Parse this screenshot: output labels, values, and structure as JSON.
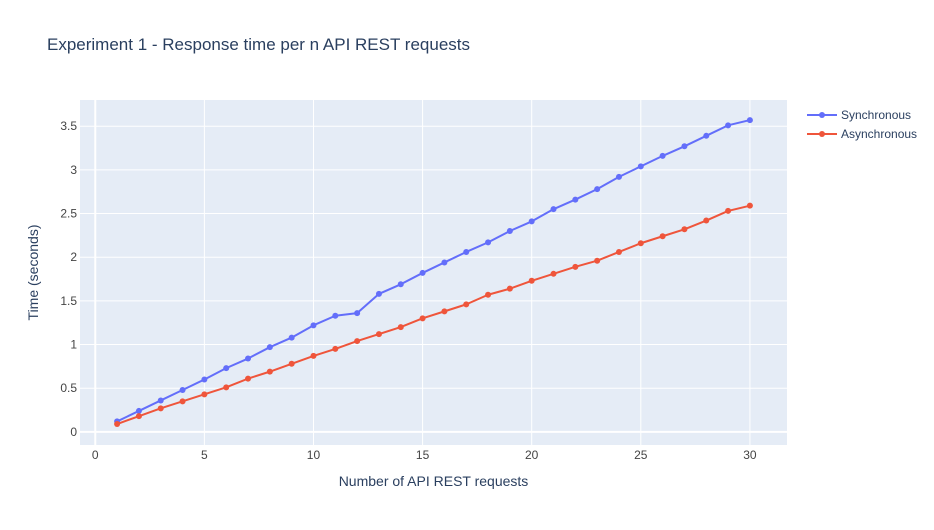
{
  "chart_data": {
    "type": "line",
    "title": "Experiment 1 - Response time per n API REST requests",
    "xlabel": "Number of API REST requests",
    "ylabel": "Time (seconds)",
    "xlim": [
      -0.7,
      31.7
    ],
    "ylim": [
      -0.15,
      3.8
    ],
    "xticks": [
      0,
      5,
      10,
      15,
      20,
      25,
      30
    ],
    "yticks": [
      0,
      0.5,
      1,
      1.5,
      2,
      2.5,
      3,
      3.5
    ],
    "grid": true,
    "legend_position": "top-right",
    "x": [
      1,
      2,
      3,
      4,
      5,
      6,
      7,
      8,
      9,
      10,
      11,
      12,
      13,
      14,
      15,
      16,
      17,
      18,
      19,
      20,
      21,
      22,
      23,
      24,
      25,
      26,
      27,
      28,
      29,
      30
    ],
    "series": [
      {
        "name": "Synchronous",
        "color": "#636efa",
        "values": [
          0.12,
          0.24,
          0.36,
          0.48,
          0.6,
          0.73,
          0.84,
          0.97,
          1.08,
          1.22,
          1.33,
          1.36,
          1.58,
          1.69,
          1.82,
          1.94,
          2.06,
          2.17,
          2.3,
          2.41,
          2.55,
          2.66,
          2.78,
          2.92,
          3.04,
          3.16,
          3.27,
          3.39,
          3.51,
          3.57
        ]
      },
      {
        "name": "Asynchronous",
        "color": "#ef553b",
        "values": [
          0.09,
          0.18,
          0.27,
          0.35,
          0.43,
          0.51,
          0.61,
          0.69,
          0.78,
          0.87,
          0.95,
          1.04,
          1.12,
          1.2,
          1.3,
          1.38,
          1.46,
          1.57,
          1.64,
          1.73,
          1.81,
          1.89,
          1.96,
          2.06,
          2.16,
          2.24,
          2.32,
          2.42,
          2.53,
          2.59
        ]
      }
    ]
  },
  "style": {
    "plot_bg": "#e5ecf6",
    "grid_color": "#ffffff",
    "text_color": "#2a3f5f",
    "tick_color": "#444444"
  }
}
